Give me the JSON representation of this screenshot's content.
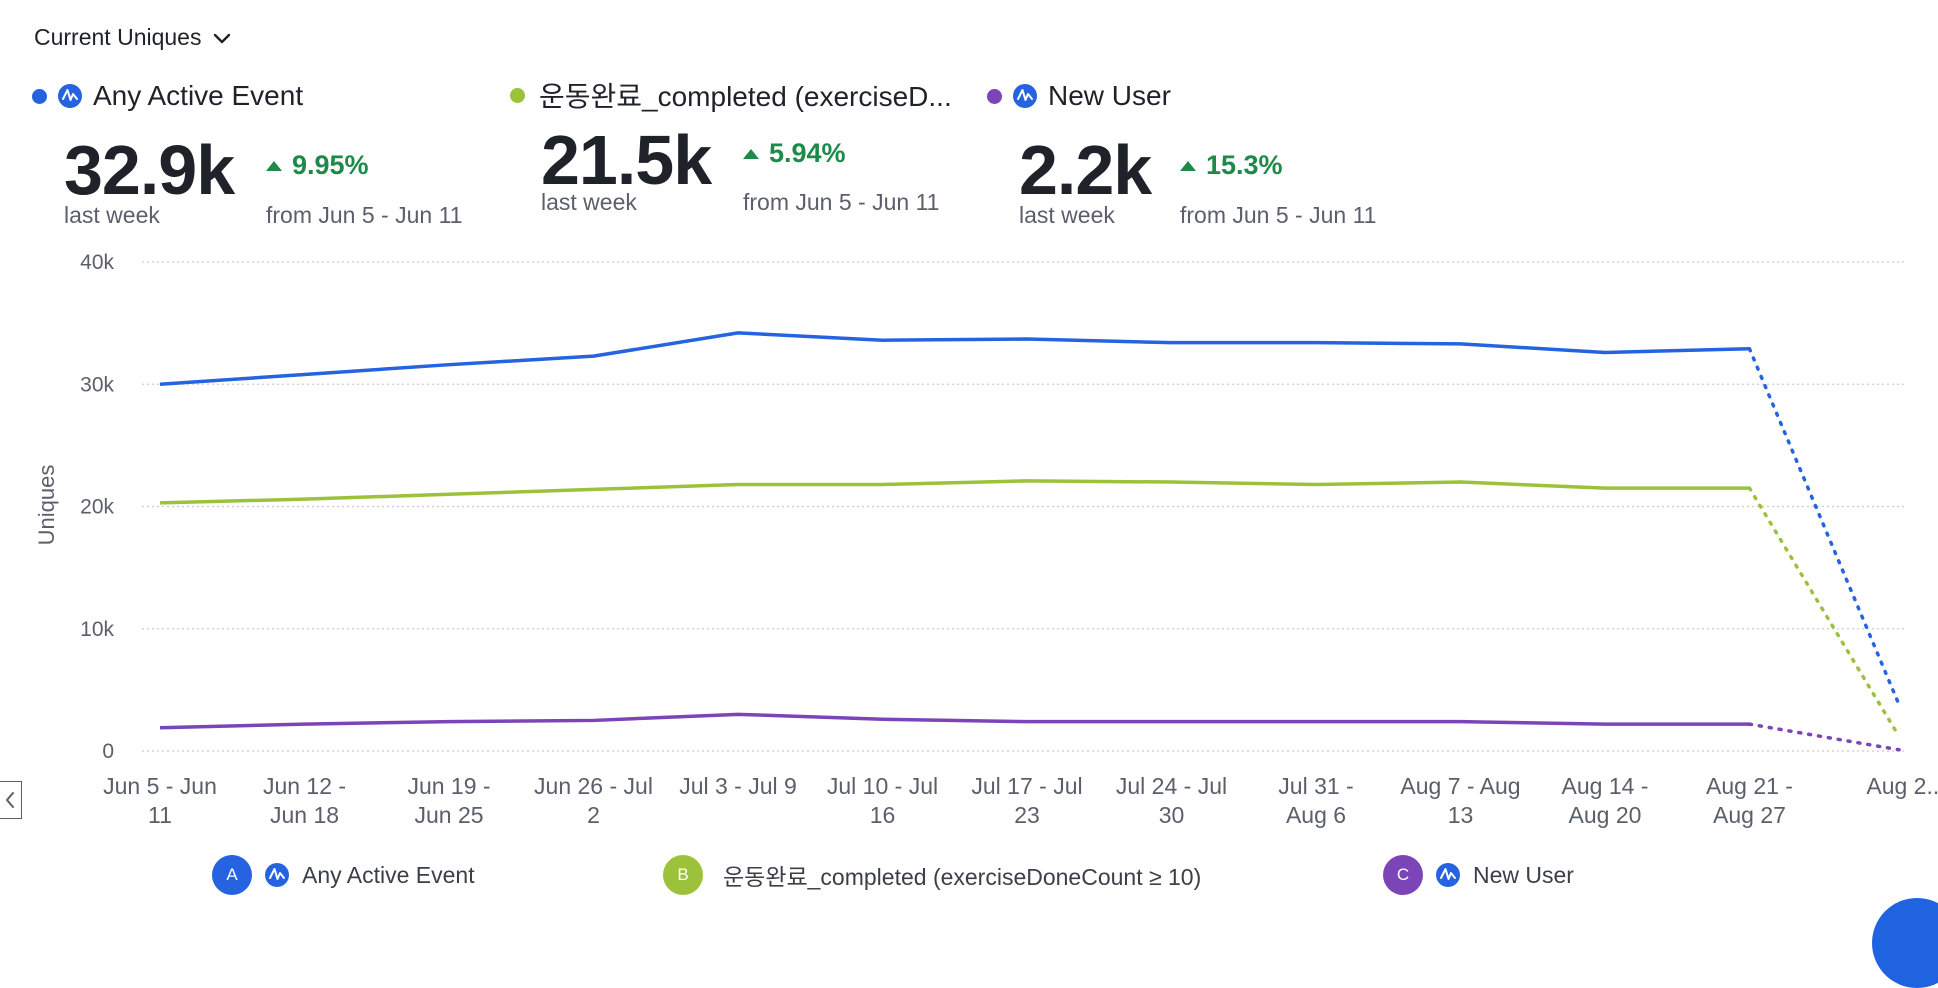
{
  "metric_selector": {
    "label": "Current Uniques"
  },
  "kpis": [
    {
      "name": "Any Active Event",
      "value": "32.9k",
      "period": "last week",
      "delta": "9.95%",
      "compare": "from Jun 5 - Jun 11",
      "color": "#2563e0",
      "has_event_icon": true
    },
    {
      "name": "운동완료_completed (exerciseD...",
      "value": "21.5k",
      "period": "last week",
      "delta": "5.94%",
      "compare": "from Jun 5 - Jun 11",
      "color": "#9bc23a",
      "has_event_icon": false
    },
    {
      "name": "New User",
      "value": "2.2k",
      "period": "last week",
      "delta": "15.3%",
      "compare": "from Jun 5 - Jun 11",
      "color": "#7b45b8",
      "has_event_icon": true
    }
  ],
  "chart_data": {
    "type": "line",
    "ylabel": "Uniques",
    "ylim": [
      0,
      40000
    ],
    "yticks": [
      {
        "value": 0,
        "label": "0"
      },
      {
        "value": 10000,
        "label": "10k"
      },
      {
        "value": 20000,
        "label": "20k"
      },
      {
        "value": 30000,
        "label": "30k"
      },
      {
        "value": 40000,
        "label": "40k"
      }
    ],
    "categories": [
      [
        "Jun 5 - Jun",
        "11"
      ],
      [
        "Jun 12 -",
        "Jun 18"
      ],
      [
        "Jun 19 -",
        "Jun 25"
      ],
      [
        "Jun 26 - Jul",
        "2"
      ],
      [
        "Jul 3 - Jul 9"
      ],
      [
        "Jul 10 - Jul",
        "16"
      ],
      [
        "Jul 17 - Jul",
        "23"
      ],
      [
        "Jul 24 - Jul",
        "30"
      ],
      [
        "Jul 31 -",
        "Aug 6"
      ],
      [
        "Aug 7 - Aug",
        "13"
      ],
      [
        "Aug 14 -",
        "Aug 20"
      ],
      [
        "Aug 21 -",
        "Aug 27"
      ],
      [
        "Aug 2..."
      ]
    ],
    "incomplete_last_point": true,
    "series": [
      {
        "name": "Any Active Event",
        "color": "#2563e0",
        "values": [
          30000,
          30800,
          31600,
          32300,
          34200,
          33600,
          33700,
          33400,
          33400,
          33300,
          32600,
          32900,
          3800
        ]
      },
      {
        "name": "운동완료_completed (exerciseDoneCount ≥ 10)",
        "color": "#9bc23a",
        "values": [
          20300,
          20600,
          21000,
          21400,
          21800,
          21800,
          22100,
          22000,
          21800,
          22000,
          21500,
          21500,
          1200
        ]
      },
      {
        "name": "New User",
        "color": "#7b45b8",
        "values": [
          1900,
          2200,
          2400,
          2500,
          3000,
          2600,
          2400,
          2400,
          2400,
          2400,
          2200,
          2200,
          100
        ]
      }
    ]
  },
  "legend": [
    {
      "badge": "A",
      "label": "Any Active Event",
      "color": "#2563e0",
      "has_event_icon": true
    },
    {
      "badge": "B",
      "label": "운동완료_completed (exerciseDoneCount ≥ 10)",
      "color": "#9bc23a",
      "has_event_icon": false
    },
    {
      "badge": "C",
      "label": "New User",
      "color": "#7b45b8",
      "has_event_icon": true
    }
  ]
}
